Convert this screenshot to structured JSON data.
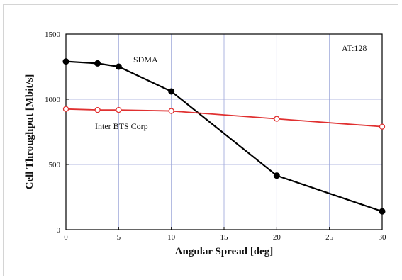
{
  "chart_data": {
    "type": "line",
    "title": "",
    "xlabel": "Angular Spread [deg]",
    "ylabel": "Cell Throughput [Mbit/s]",
    "xlim": [
      0,
      30
    ],
    "ylim": [
      0,
      1500
    ],
    "xticks": [
      0,
      5,
      10,
      15,
      20,
      25,
      30
    ],
    "yticks": [
      0,
      500,
      1000,
      1500
    ],
    "grid": true,
    "annotations": [
      "AT:128"
    ],
    "series": [
      {
        "name": "SDMA",
        "color": "#000000",
        "marker": "filled-circle",
        "x": [
          0,
          3,
          5,
          10,
          20,
          30
        ],
        "y": [
          1290,
          1275,
          1250,
          1060,
          415,
          140
        ]
      },
      {
        "name": "Inter BTS Corp",
        "color": "#e03030",
        "marker": "open-circle",
        "x": [
          0,
          3,
          5,
          10,
          20,
          30
        ],
        "y": [
          925,
          918,
          918,
          910,
          850,
          790
        ]
      }
    ]
  }
}
